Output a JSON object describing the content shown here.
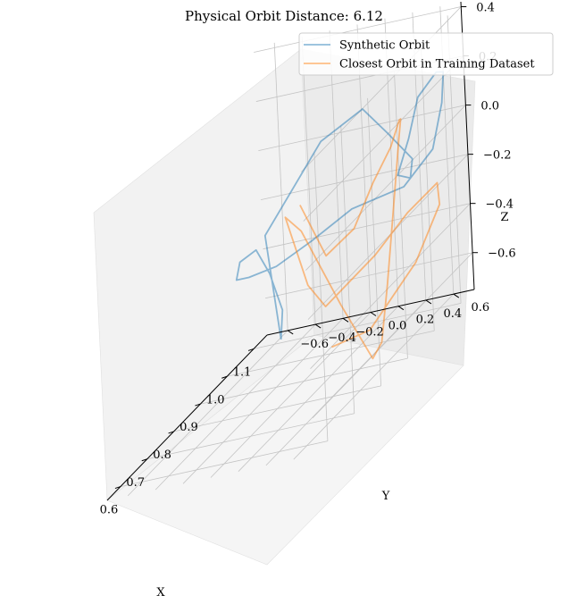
{
  "chart_data": {
    "type": "line",
    "projection": "3d",
    "title": "Physical Orbit Distance: 6.12",
    "xlabel": "X",
    "ylabel": "Y",
    "zlabel": "Z",
    "xlim": [
      0.55,
      1.15
    ],
    "ylim": [
      -0.75,
      0.75
    ],
    "zlim": [
      -0.75,
      0.42
    ],
    "x_ticks": [
      "0.6",
      "0.7",
      "0.8",
      "0.9",
      "1.0",
      "1.1"
    ],
    "y_ticks": [
      "−0.6",
      "−0.4",
      "−0.2",
      "0.0",
      "0.2",
      "0.4",
      "0.6"
    ],
    "z_ticks": [
      "−0.6",
      "−0.4",
      "−0.2",
      "0.0",
      "0.2",
      "0.4"
    ],
    "grid": true,
    "legend_position": "top-right",
    "legend": [
      "Synthetic Orbit",
      "Closest Orbit in Training Dataset"
    ],
    "series": [
      {
        "name": "Synthetic Orbit",
        "color": "#1f77b4",
        "alpha": 0.5,
        "points": [
          [
            0.6,
            0.45,
            -0.3
          ],
          [
            0.66,
            0.25,
            0.08
          ],
          [
            0.82,
            0.36,
            0.27
          ],
          [
            0.95,
            0.41,
            0.25
          ],
          [
            1.02,
            0.44,
            0.07
          ],
          [
            1.06,
            0.53,
            -0.09
          ],
          [
            1.03,
            0.57,
            -0.14
          ],
          [
            1.01,
            0.52,
            -0.1
          ],
          [
            1.03,
            0.57,
            0.02
          ],
          [
            1.04,
            0.63,
            0.17
          ],
          [
            1.08,
            0.69,
            0.22
          ],
          [
            1.12,
            0.66,
            0.18
          ],
          [
            1.14,
            0.6,
            0.04
          ],
          [
            1.13,
            0.54,
            -0.13
          ],
          [
            1.1,
            0.38,
            -0.23
          ],
          [
            1.05,
            0.1,
            -0.23
          ],
          [
            1.0,
            -0.1,
            -0.28
          ],
          [
            0.93,
            -0.22,
            -0.29
          ],
          [
            0.85,
            -0.26,
            -0.24
          ],
          [
            0.77,
            -0.19,
            -0.17
          ],
          [
            0.7,
            -0.02,
            -0.04
          ],
          [
            0.66,
            0.18,
            0.03
          ],
          [
            0.63,
            0.33,
            -0.05
          ],
          [
            0.62,
            0.43,
            -0.2
          ],
          [
            0.6,
            0.45,
            -0.3
          ]
        ]
      },
      {
        "name": "Closest Orbit in Training Dataset",
        "color": "#ff7f0e",
        "alpha": 0.5,
        "points": [
          [
            0.88,
            0.07,
            -0.02
          ],
          [
            0.94,
            0.12,
            -0.3
          ],
          [
            0.98,
            0.25,
            -0.25
          ],
          [
            1.0,
            0.36,
            -0.1
          ],
          [
            1.01,
            0.48,
            0.02
          ],
          [
            1.0,
            0.57,
            0.13
          ],
          [
            0.98,
            0.62,
            0.15
          ],
          [
            0.97,
            0.62,
            0.08
          ],
          [
            0.96,
            0.58,
            -0.18
          ],
          [
            0.94,
            0.55,
            -0.47
          ],
          [
            0.92,
            0.53,
            -0.68
          ],
          [
            0.9,
            0.5,
            -0.72
          ],
          [
            0.87,
            0.35,
            -0.45
          ],
          [
            0.85,
            0.13,
            -0.1
          ],
          [
            0.85,
            0.02,
            -0.03
          ],
          [
            0.88,
            0.1,
            -0.35
          ],
          [
            0.89,
            0.2,
            -0.46
          ],
          [
            0.95,
            0.45,
            -0.35
          ],
          [
            1.0,
            0.6,
            -0.25
          ],
          [
            1.05,
            0.72,
            -0.2
          ],
          [
            1.04,
            0.75,
            -0.28
          ],
          [
            0.99,
            0.66,
            -0.45
          ],
          [
            0.92,
            0.45,
            -0.62
          ],
          [
            0.88,
            0.25,
            -0.62
          ]
        ]
      }
    ]
  }
}
